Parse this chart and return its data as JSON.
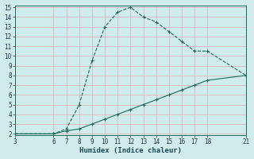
{
  "xlabel": "Humidex (Indice chaleur)",
  "ylabel": "",
  "bg_color": "#d0ecea",
  "grid_color": "#d8b8b8",
  "line_color": "#1a6b5a",
  "xlim": [
    3,
    21
  ],
  "ylim": [
    2,
    15
  ],
  "xticks": [
    3,
    6,
    7,
    8,
    9,
    10,
    11,
    12,
    13,
    14,
    15,
    16,
    17,
    18,
    21
  ],
  "yticks": [
    2,
    3,
    4,
    5,
    6,
    7,
    8,
    9,
    10,
    11,
    12,
    13,
    14,
    15
  ],
  "curve_x": [
    3,
    6,
    7,
    8,
    9,
    10,
    11,
    12,
    13,
    14,
    15,
    16,
    17,
    18,
    21
  ],
  "curve_y": [
    2,
    2,
    2.5,
    5,
    9.5,
    13,
    14.5,
    15,
    14,
    13.5,
    12.5,
    11.5,
    10.5,
    10.5,
    8
  ],
  "line_x": [
    3,
    6,
    7,
    8,
    9,
    10,
    11,
    12,
    13,
    14,
    15,
    16,
    17,
    18,
    21
  ],
  "line_y": [
    2,
    2,
    2.3,
    2.5,
    3,
    3.5,
    4,
    4.5,
    5,
    5.5,
    6,
    6.5,
    7,
    7.5,
    8
  ]
}
